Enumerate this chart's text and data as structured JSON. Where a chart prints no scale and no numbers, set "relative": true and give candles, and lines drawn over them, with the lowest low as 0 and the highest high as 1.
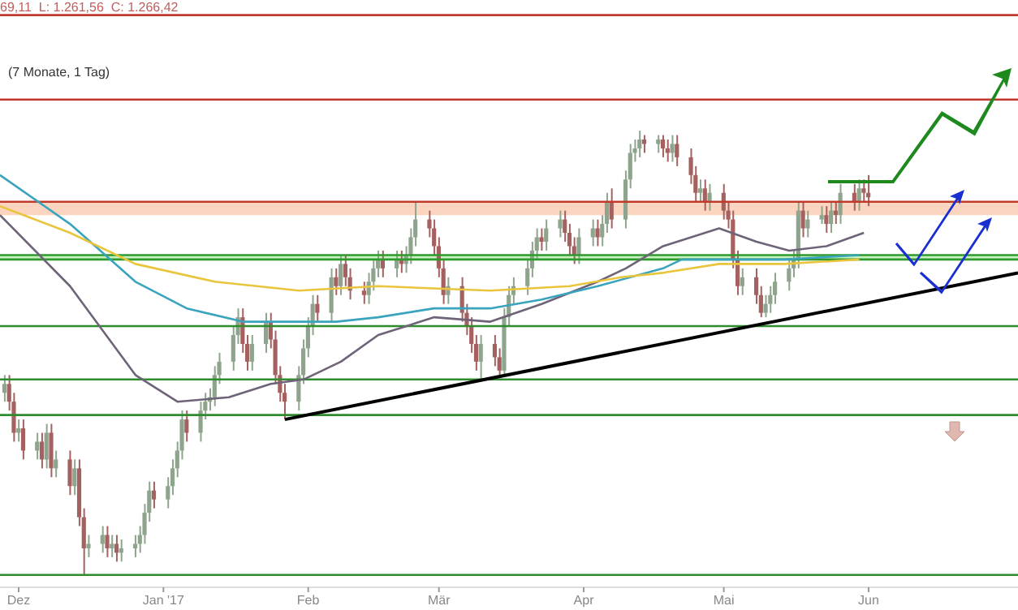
{
  "chart_data": {
    "type": "candlestick",
    "relative": true,
    "annotations": [
      "69,11  L: 1.261,56  C: 1.266,42",
      "(7 Monate, 1 Tag)"
    ],
    "xlim": [
      "2016-11-27",
      "2017-07-03"
    ],
    "xticks": [
      {
        "value": "2016-12-01",
        "label": "Dez"
      },
      {
        "value": "2017-01-01",
        "label": "Jan '17"
      },
      {
        "value": "2017-02-01",
        "label": "Feb"
      },
      {
        "value": "2017-03-01",
        "label": "Mär"
      },
      {
        "value": "2017-04-01",
        "label": "Apr"
      },
      {
        "value": "2017-05-01",
        "label": "Mai"
      },
      {
        "value": "2017-06-01",
        "label": "Jun"
      }
    ],
    "ref_lines": [
      {
        "axis": "y",
        "value": 1.26,
        "color": "#c0392b"
      },
      {
        "axis": "y",
        "value": 1.07,
        "color": "#c0392b"
      },
      {
        "axis": "y",
        "value": 0.84,
        "color": "#c0392b"
      },
      {
        "axis": "y",
        "value": 0.72,
        "color": "#2e9a2e"
      },
      {
        "axis": "y",
        "value": 0.71,
        "color": "#2e9a2e"
      },
      {
        "axis": "y",
        "value": 0.56,
        "color": "#2e8b2e"
      },
      {
        "axis": "y",
        "value": 0.44,
        "color": "#2e8b2e"
      },
      {
        "axis": "y",
        "value": 0.36,
        "color": "#2e8b2e"
      },
      {
        "axis": "y",
        "value": 0,
        "color": "#2e8b2e"
      }
    ],
    "bands": [
      {
        "axis": "y",
        "from": 0.81,
        "to": 0.84,
        "color": "#fbd5c0"
      },
      {
        "axis": "y",
        "from": 0.71,
        "to": 0.72,
        "color": "#c6f3bd"
      }
    ],
    "series": [
      {
        "type": "candlestick",
        "x": [
          "2016-11-28",
          "2016-11-29",
          "2016-11-30",
          "2016-12-01",
          "2016-12-02",
          "2016-12-05",
          "2016-12-06",
          "2016-12-07",
          "2016-12-08",
          "2016-12-09",
          "2016-12-12",
          "2016-12-13",
          "2016-12-14",
          "2016-12-15",
          "2016-12-16",
          "2016-12-19",
          "2016-12-20",
          "2016-12-21",
          "2016-12-22",
          "2016-12-23",
          "2016-12-26",
          "2016-12-27",
          "2016-12-28",
          "2016-12-29",
          "2016-12-30",
          "2017-01-02",
          "2017-01-03",
          "2017-01-04",
          "2017-01-05",
          "2017-01-06",
          "2017-01-09",
          "2017-01-10",
          "2017-01-11",
          "2017-01-12",
          "2017-01-13",
          "2017-01-16",
          "2017-01-17",
          "2017-01-18",
          "2017-01-19",
          "2017-01-20",
          "2017-01-23",
          "2017-01-24",
          "2017-01-25",
          "2017-01-26",
          "2017-01-27",
          "2017-01-30",
          "2017-01-31",
          "2017-02-01",
          "2017-02-02",
          "2017-02-03",
          "2017-02-06",
          "2017-02-07",
          "2017-02-08",
          "2017-02-09",
          "2017-02-10",
          "2017-02-13",
          "2017-02-14",
          "2017-02-15",
          "2017-02-16",
          "2017-02-17",
          "2017-02-20",
          "2017-02-21",
          "2017-02-22",
          "2017-02-23",
          "2017-02-24",
          "2017-02-27",
          "2017-02-28",
          "2017-03-01",
          "2017-03-02",
          "2017-03-03",
          "2017-03-06",
          "2017-03-07",
          "2017-03-08",
          "2017-03-09",
          "2017-03-10",
          "2017-03-13",
          "2017-03-14",
          "2017-03-15",
          "2017-03-16",
          "2017-03-17",
          "2017-03-20",
          "2017-03-21",
          "2017-03-22",
          "2017-03-23",
          "2017-03-24",
          "2017-03-27",
          "2017-03-28",
          "2017-03-29",
          "2017-03-30",
          "2017-03-31",
          "2017-04-03",
          "2017-04-04",
          "2017-04-05",
          "2017-04-06",
          "2017-04-07",
          "2017-04-10",
          "2017-04-11",
          "2017-04-12",
          "2017-04-13",
          "2017-04-14",
          "2017-04-17",
          "2017-04-18",
          "2017-04-19",
          "2017-04-20",
          "2017-04-21",
          "2017-04-24",
          "2017-04-25",
          "2017-04-26",
          "2017-04-27",
          "2017-04-28",
          "2017-05-01",
          "2017-05-02",
          "2017-05-03",
          "2017-05-04",
          "2017-05-05",
          "2017-05-08",
          "2017-05-09",
          "2017-05-10",
          "2017-05-11",
          "2017-05-12",
          "2017-05-15",
          "2017-05-16",
          "2017-05-17",
          "2017-05-18",
          "2017-05-19",
          "2017-05-22",
          "2017-05-23",
          "2017-05-24",
          "2017-05-25",
          "2017-05-26",
          "2017-05-29",
          "2017-05-30",
          "2017-05-31",
          "2017-06-01"
        ],
        "ohlc": [
          [
            0.41,
            0.45,
            0.39,
            0.43
          ],
          [
            0.43,
            0.45,
            0.37,
            0.39
          ],
          [
            0.39,
            0.41,
            0.3,
            0.32
          ],
          [
            0.32,
            0.35,
            0.3,
            0.33
          ],
          [
            0.33,
            0.35,
            0.26,
            0.28
          ],
          [
            0.28,
            0.32,
            0.26,
            0.3
          ],
          [
            0.3,
            0.32,
            0.24,
            0.26
          ],
          [
            0.26,
            0.34,
            0.24,
            0.32
          ],
          [
            0.32,
            0.34,
            0.22,
            0.24
          ],
          [
            0.24,
            0.28,
            0.22,
            0.26
          ],
          [
            0.26,
            0.28,
            0.18,
            0.2
          ],
          [
            0.2,
            0.26,
            0.18,
            0.24
          ],
          [
            0.24,
            0.26,
            0.11,
            0.13
          ],
          [
            0.13,
            0.15,
            0,
            0.06
          ],
          [
            0.06,
            0.09,
            0.04,
            0.07
          ],
          [
            0.07,
            0.11,
            0.05,
            0.09
          ],
          [
            0.09,
            0.11,
            0.04,
            0.06
          ],
          [
            0.06,
            0.09,
            0.04,
            0.07
          ],
          [
            0.07,
            0.09,
            0.03,
            0.05
          ],
          [
            0.05,
            0.08,
            0.03,
            0.06
          ],
          [
            0.06,
            0.09,
            0.04,
            0.07
          ],
          [
            0.07,
            0.11,
            0.05,
            0.09
          ],
          [
            0.09,
            0.16,
            0.07,
            0.14
          ],
          [
            0.14,
            0.21,
            0.12,
            0.19
          ],
          [
            0.19,
            0.21,
            0.15,
            0.17
          ],
          [
            0.17,
            0.22,
            0.15,
            0.2
          ],
          [
            0.2,
            0.26,
            0.18,
            0.24
          ],
          [
            0.24,
            0.3,
            0.22,
            0.28
          ],
          [
            0.28,
            0.37,
            0.26,
            0.35
          ],
          [
            0.35,
            0.37,
            0.3,
            0.32
          ],
          [
            0.32,
            0.39,
            0.3,
            0.37
          ],
          [
            0.37,
            0.41,
            0.35,
            0.39
          ],
          [
            0.39,
            0.42,
            0.37,
            0.4
          ],
          [
            0.4,
            0.47,
            0.38,
            0.45
          ],
          [
            0.45,
            0.5,
            0.43,
            0.48
          ],
          [
            0.48,
            0.56,
            0.46,
            0.54
          ],
          [
            0.54,
            0.6,
            0.52,
            0.58
          ],
          [
            0.58,
            0.6,
            0.5,
            0.52
          ],
          [
            0.52,
            0.54,
            0.46,
            0.48
          ],
          [
            0.48,
            0.54,
            0.46,
            0.52
          ],
          [
            0.52,
            0.59,
            0.5,
            0.57
          ],
          [
            0.57,
            0.59,
            0.51,
            0.53
          ],
          [
            0.53,
            0.55,
            0.43,
            0.45
          ],
          [
            0.45,
            0.47,
            0.39,
            0.41
          ],
          [
            0.41,
            0.43,
            0.35,
            0.39
          ],
          [
            0.39,
            0.47,
            0.37,
            0.45
          ],
          [
            0.45,
            0.53,
            0.43,
            0.51
          ],
          [
            0.51,
            0.58,
            0.49,
            0.56
          ],
          [
            0.56,
            0.63,
            0.54,
            0.61
          ],
          [
            0.61,
            0.63,
            0.57,
            0.59
          ],
          [
            0.59,
            0.69,
            0.57,
            0.67
          ],
          [
            0.67,
            0.69,
            0.63,
            0.65
          ],
          [
            0.65,
            0.72,
            0.63,
            0.7
          ],
          [
            0.7,
            0.72,
            0.65,
            0.67
          ],
          [
            0.67,
            0.69,
            0.62,
            0.64
          ],
          [
            0.64,
            0.66,
            0.61,
            0.63
          ],
          [
            0.63,
            0.68,
            0.61,
            0.66
          ],
          [
            0.66,
            0.71,
            0.64,
            0.69
          ],
          [
            0.69,
            0.73,
            0.67,
            0.71
          ],
          [
            0.71,
            0.73,
            0.67,
            0.69
          ],
          [
            0.69,
            0.73,
            0.67,
            0.71
          ],
          [
            0.71,
            0.73,
            0.68,
            0.7
          ],
          [
            0.7,
            0.74,
            0.68,
            0.72
          ],
          [
            0.72,
            0.78,
            0.7,
            0.76
          ],
          [
            0.76,
            0.84,
            0.74,
            0.8
          ],
          [
            0.8,
            0.82,
            0.76,
            0.78
          ],
          [
            0.78,
            0.8,
            0.72,
            0.74
          ],
          [
            0.74,
            0.76,
            0.67,
            0.69
          ],
          [
            0.69,
            0.71,
            0.61,
            0.63
          ],
          [
            0.63,
            0.67,
            0.61,
            0.65
          ],
          [
            0.65,
            0.67,
            0.57,
            0.59
          ],
          [
            0.59,
            0.61,
            0.54,
            0.56
          ],
          [
            0.56,
            0.58,
            0.5,
            0.52
          ],
          [
            0.52,
            0.54,
            0.46,
            0.48
          ],
          [
            0.48,
            0.54,
            0.44,
            0.52
          ],
          [
            0.52,
            0.54,
            0.47,
            0.49
          ],
          [
            0.49,
            0.51,
            0.45,
            0.46
          ],
          [
            0.46,
            0.6,
            0.45,
            0.58
          ],
          [
            0.58,
            0.65,
            0.56,
            0.63
          ],
          [
            0.63,
            0.67,
            0.61,
            0.65
          ],
          [
            0.65,
            0.71,
            0.63,
            0.69
          ],
          [
            0.69,
            0.75,
            0.67,
            0.73
          ],
          [
            0.73,
            0.78,
            0.71,
            0.76
          ],
          [
            0.76,
            0.78,
            0.73,
            0.75
          ],
          [
            0.75,
            0.8,
            0.73,
            0.78
          ],
          [
            0.78,
            0.82,
            0.76,
            0.8
          ],
          [
            0.8,
            0.82,
            0.75,
            0.77
          ],
          [
            0.77,
            0.79,
            0.72,
            0.74
          ],
          [
            0.74,
            0.76,
            0.7,
            0.72
          ],
          [
            0.72,
            0.78,
            0.7,
            0.76
          ],
          [
            0.76,
            0.8,
            0.74,
            0.78
          ],
          [
            0.78,
            0.8,
            0.74,
            0.76
          ],
          [
            0.76,
            0.81,
            0.74,
            0.79
          ],
          [
            0.79,
            0.86,
            0.77,
            0.84
          ],
          [
            0.84,
            0.87,
            0.78,
            0.8
          ],
          [
            0.8,
            0.91,
            0.78,
            0.89
          ],
          [
            0.89,
            0.97,
            0.87,
            0.95
          ],
          [
            0.95,
            0.98,
            0.93,
            0.96
          ],
          [
            0.96,
            1,
            0.94,
            0.98
          ],
          [
            0.98,
            0.99,
            0.95,
            0.97
          ],
          [
            0.97,
            0.99,
            0.95,
            0.98
          ],
          [
            0.98,
            0.99,
            0.94,
            0.96
          ],
          [
            0.96,
            0.98,
            0.93,
            0.95
          ],
          [
            0.95,
            0.99,
            0.93,
            0.97
          ],
          [
            0.97,
            0.99,
            0.92,
            0.94
          ],
          [
            0.94,
            0.96,
            0.88,
            0.9
          ],
          [
            0.9,
            0.92,
            0.84,
            0.86
          ],
          [
            0.86,
            0.89,
            0.84,
            0.87
          ],
          [
            0.87,
            0.89,
            0.82,
            0.84
          ],
          [
            0.84,
            0.88,
            0.82,
            0.86
          ],
          [
            0.86,
            0.88,
            0.8,
            0.82
          ],
          [
            0.82,
            0.84,
            0.78,
            0.8
          ],
          [
            0.8,
            0.82,
            0.69,
            0.71
          ],
          [
            0.71,
            0.73,
            0.63,
            0.65
          ],
          [
            0.65,
            0.69,
            0.63,
            0.67
          ],
          [
            0.67,
            0.69,
            0.61,
            0.63
          ],
          [
            0.63,
            0.65,
            0.58,
            0.59
          ],
          [
            0.59,
            0.63,
            0.58,
            0.61
          ],
          [
            0.61,
            0.65,
            0.59,
            0.63
          ],
          [
            0.63,
            0.68,
            0.61,
            0.66
          ],
          [
            0.66,
            0.71,
            0.64,
            0.69
          ],
          [
            0.69,
            0.73,
            0.67,
            0.71
          ],
          [
            0.71,
            0.84,
            0.69,
            0.82
          ],
          [
            0.82,
            0.84,
            0.76,
            0.78
          ],
          [
            0.78,
            0.82,
            0.76,
            0.8
          ],
          [
            0.8,
            0.83,
            0.79,
            0.81
          ],
          [
            0.81,
            0.83,
            0.77,
            0.79
          ],
          [
            0.79,
            0.84,
            0.77,
            0.82
          ],
          [
            0.82,
            0.84,
            0.79,
            0.81
          ],
          [
            0.81,
            0.88,
            0.79,
            0.86
          ],
          [
            0.86,
            0.88,
            0.82,
            0.84
          ],
          [
            0.84,
            0.89,
            0.82,
            0.87
          ],
          [
            0.87,
            0.89,
            0.84,
            0.86
          ],
          [
            0.86,
            0.9,
            0.83,
            0.85
          ]
        ],
        "colors": [
          "#8fa48c",
          "#a4615f",
          "#a4615f",
          "#8fa48c",
          "#a4615f",
          "#8fa48c",
          "#a4615f",
          "#8fa48c",
          "#a4615f",
          "#8fa48c",
          "#a4615f",
          "#8fa48c",
          "#a4615f",
          "#a4615f",
          "#8fa48c",
          "#8fa48c",
          "#a4615f",
          "#8fa48c",
          "#a4615f",
          "#8fa48c",
          "#8fa48c",
          "#8fa48c",
          "#8fa48c",
          "#8fa48c",
          "#a4615f",
          "#8fa48c",
          "#8fa48c",
          "#8fa48c",
          "#8fa48c",
          "#a4615f",
          "#8fa48c",
          "#8fa48c",
          "#8fa48c",
          "#8fa48c",
          "#8fa48c",
          "#8fa48c",
          "#8fa48c",
          "#a4615f",
          "#a4615f",
          "#8fa48c",
          "#8fa48c",
          "#a4615f",
          "#a4615f",
          "#a4615f",
          "#a4615f",
          "#8fa48c",
          "#8fa48c",
          "#8fa48c",
          "#8fa48c",
          "#a4615f",
          "#8fa48c",
          "#a4615f",
          "#8fa48c",
          "#a4615f",
          "#a4615f",
          "#a4615f",
          "#8fa48c",
          "#8fa48c",
          "#8fa48c",
          "#a4615f",
          "#8fa48c",
          "#a4615f",
          "#8fa48c",
          "#8fa48c",
          "#8fa48c",
          "#a4615f",
          "#a4615f",
          "#a4615f",
          "#a4615f",
          "#8fa48c",
          "#a4615f",
          "#a4615f",
          "#a4615f",
          "#a4615f",
          "#8fa48c",
          "#a4615f",
          "#a4615f",
          "#8fa48c",
          "#8fa48c",
          "#8fa48c",
          "#8fa48c",
          "#8fa48c",
          "#8fa48c",
          "#a4615f",
          "#8fa48c",
          "#8fa48c",
          "#a4615f",
          "#a4615f",
          "#a4615f",
          "#8fa48c",
          "#8fa48c",
          "#a4615f",
          "#8fa48c",
          "#8fa48c",
          "#a4615f",
          "#8fa48c",
          "#8fa48c",
          "#8fa48c",
          "#8fa48c",
          "#a4615f",
          "#8fa48c",
          "#a4615f",
          "#a4615f",
          "#8fa48c",
          "#a4615f",
          "#a4615f",
          "#a4615f",
          "#8fa48c",
          "#a4615f",
          "#8fa48c",
          "#a4615f",
          "#a4615f",
          "#a4615f",
          "#a4615f",
          "#8fa48c",
          "#a4615f",
          "#a4615f",
          "#8fa48c",
          "#8fa48c",
          "#8fa48c",
          "#8fa48c",
          "#8fa48c",
          "#8fa48c",
          "#a4615f",
          "#8fa48c",
          "#8fa48c",
          "#a4615f",
          "#8fa48c",
          "#a4615f",
          "#8fa48c",
          "#a4615f",
          "#8fa48c",
          "#a4615f",
          "#a4615f"
        ]
      },
      {
        "type": "line",
        "color": "#6e6378",
        "x": [
          "2016-11-27",
          "2016-12-12",
          "2016-12-26",
          "2017-01-04",
          "2017-01-15",
          "2017-01-24",
          "2017-01-31",
          "2017-02-08",
          "2017-02-16",
          "2017-02-28",
          "2017-03-12",
          "2017-03-23",
          "2017-04-04",
          "2017-04-10",
          "2017-04-18",
          "2017-04-30",
          "2017-05-08",
          "2017-05-15",
          "2017-05-23",
          "2017-05-31"
        ],
        "values": [
          0.81,
          0.65,
          0.45,
          0.39,
          0.4,
          0.43,
          0.44,
          0.48,
          0.54,
          0.58,
          0.57,
          0.61,
          0.66,
          0.69,
          0.74,
          0.78,
          0.75,
          0.73,
          0.74,
          0.77
        ]
      },
      {
        "type": "line",
        "color": "#3aa3bd",
        "x": [
          "2016-11-27",
          "2016-12-12",
          "2016-12-26",
          "2017-01-06",
          "2017-01-18",
          "2017-01-30",
          "2017-02-07",
          "2017-02-16",
          "2017-02-28",
          "2017-03-12",
          "2017-03-23",
          "2017-04-04",
          "2017-04-18",
          "2017-04-22",
          "2017-04-30",
          "2017-05-14",
          "2017-05-30"
        ],
        "values": [
          0.9,
          0.79,
          0.66,
          0.6,
          0.57,
          0.57,
          0.57,
          0.58,
          0.6,
          0.6,
          0.62,
          0.65,
          0.69,
          0.71,
          0.71,
          0.71,
          0.72
        ]
      },
      {
        "type": "line",
        "color": "#e8c53c",
        "x": [
          "2016-11-27",
          "2016-12-12",
          "2016-12-26",
          "2017-01-12",
          "2017-01-30",
          "2017-02-16",
          "2017-03-12",
          "2017-03-29",
          "2017-04-09",
          "2017-04-18",
          "2017-04-30",
          "2017-05-14",
          "2017-05-30"
        ],
        "values": [
          0.83,
          0.77,
          0.7,
          0.66,
          0.64,
          0.65,
          0.64,
          0.65,
          0.67,
          0.68,
          0.7,
          0.7,
          0.71
        ]
      },
      {
        "type": "line",
        "color": "#000000",
        "x": [
          "2017-01-27",
          "2017-07-03"
        ],
        "values": [
          0.35,
          0.68
        ]
      }
    ]
  }
}
